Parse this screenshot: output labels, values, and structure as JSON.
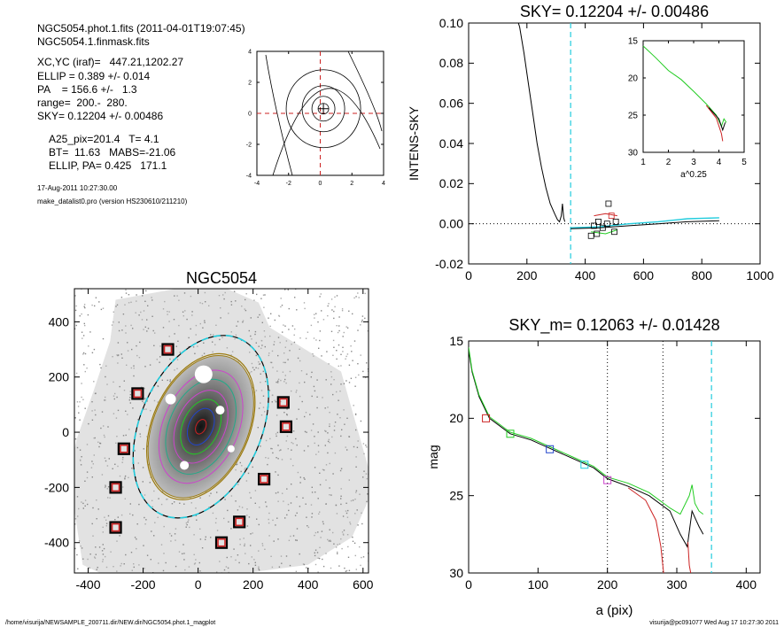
{
  "header": {
    "lines": [
      "NGC5054.phot.1.fits  (2011-04-01T19:07:45)",
      "NGC5054.1.finmask.fits",
      "XC,YC (iraf)=   447.21,1202.27",
      "ELLIP = 0.389 +/- 0.014",
      "PA    = 156.6 +/-   1.3",
      "range=  200.-  280.",
      "SKY= 0.12204 +/- 0.00486",
      "A25_pix=201.4   T= 4.1",
      "BT=  11.63   MABS=-21.06",
      "ELLIP, PA= 0.425   171.1",
      "17-Aug-2011 10:27:30.00",
      "make_datalist0.pro (version HS230610/211210)"
    ]
  },
  "footer": {
    "path": "/home/visurija/NEWSAMPLE_200711.dir/NEW.dir/NGC5054.phot.1_magplot",
    "stamp": "visurija@pc091077  Wed Aug 17 10:27:30 2011"
  },
  "colors": {
    "cyan": "#22ccdd",
    "red": "#cc2222",
    "green": "#22cc22",
    "blue": "#2244cc",
    "magenta": "#cc44cc",
    "gold": "#9a7a10",
    "black": "#000000"
  },
  "chart_data": [
    {
      "id": "center_contour",
      "type": "contour",
      "xlim": [
        -4,
        4
      ],
      "ylim": [
        -4,
        4
      ],
      "xticks": [
        "-4",
        "-2",
        "0",
        "2",
        "4"
      ],
      "yticks": [
        "-4",
        "-2",
        "0",
        "2",
        "4"
      ],
      "center": [
        0.2,
        0.3
      ]
    },
    {
      "id": "sky_profile",
      "type": "line",
      "title": "SKY= 0.12204 +/- 0.00486",
      "xlabel": "",
      "ylabel": "INTENS-SKY",
      "xlim": [
        0,
        1000
      ],
      "ylim": [
        -0.02,
        0.1
      ],
      "xticks": [
        "0",
        "200",
        "400",
        "600",
        "800",
        "1000"
      ],
      "yticks": [
        "-0.02",
        "0.00",
        "0.02",
        "0.04",
        "0.06",
        "0.08",
        "0.10"
      ],
      "vline_cyan": 350,
      "series": [
        {
          "color": "black",
          "points": [
            [
              160,
              0.105
            ],
            [
              175,
              0.098
            ],
            [
              190,
              0.085
            ],
            [
              205,
              0.07
            ],
            [
              220,
              0.055
            ],
            [
              235,
              0.04
            ],
            [
              250,
              0.028
            ],
            [
              265,
              0.018
            ],
            [
              280,
              0.01
            ],
            [
              295,
              0.005
            ],
            [
              305,
              0.002
            ],
            [
              312,
              0.001
            ],
            [
              318,
              0.004
            ],
            [
              322,
              0.01
            ],
            [
              326,
              0.003
            ],
            [
              330,
              0.001
            ]
          ]
        },
        {
          "color": "cyan",
          "points": [
            [
              350,
              -0.002
            ],
            [
              450,
              -0.0015
            ],
            [
              550,
              0.0
            ],
            [
              650,
              0.001
            ],
            [
              750,
              0.0025
            ],
            [
              860,
              0.003
            ]
          ]
        },
        {
          "color": "black",
          "points": [
            [
              350,
              -0.0025
            ],
            [
              450,
              -0.002
            ],
            [
              550,
              -0.001
            ],
            [
              650,
              0.0
            ],
            [
              750,
              0.001
            ],
            [
              860,
              0.0015
            ]
          ]
        },
        {
          "color": "green",
          "points": [
            [
              420,
              -0.004
            ],
            [
              470,
              -0.005
            ],
            [
              510,
              -0.003
            ]
          ]
        },
        {
          "color": "red",
          "points": [
            [
              430,
              0.004
            ],
            [
              470,
              0.005
            ],
            [
              510,
              0.004
            ]
          ]
        }
      ],
      "squares": [
        {
          "x": 420,
          "y": -0.006,
          "color": "black"
        },
        {
          "x": 440,
          "y": -0.005,
          "color": "black"
        },
        {
          "x": 445,
          "y": 0.001,
          "color": "black"
        },
        {
          "x": 460,
          "y": -0.002,
          "color": "black"
        },
        {
          "x": 475,
          "y": 0.0,
          "color": "black"
        },
        {
          "x": 480,
          "y": 0.01,
          "color": "black"
        },
        {
          "x": 490,
          "y": 0.004,
          "color": "red"
        },
        {
          "x": 500,
          "y": -0.004,
          "color": "black"
        },
        {
          "x": 505,
          "y": 0.001,
          "color": "black"
        },
        {
          "x": 430,
          "y": -0.001,
          "color": "black"
        }
      ]
    },
    {
      "id": "inset_profile",
      "type": "line",
      "xlabel": "a^0.25",
      "ylabel": "",
      "xlim": [
        1,
        5
      ],
      "ylim": [
        15,
        30
      ],
      "xticks": [
        "1",
        "2",
        "3",
        "4",
        "5"
      ],
      "yticks": [
        "15",
        "20",
        "25",
        "30"
      ],
      "series": [
        {
          "color": "green",
          "points": [
            [
              1.0,
              15.7
            ],
            [
              1.5,
              17.3
            ],
            [
              2.0,
              19.0
            ],
            [
              2.5,
              20.2
            ],
            [
              3.0,
              21.8
            ],
            [
              3.5,
              23.5
            ],
            [
              3.9,
              25.0
            ],
            [
              4.1,
              26.5
            ],
            [
              4.2,
              25.5
            ],
            [
              4.3,
              26.0
            ]
          ]
        },
        {
          "color": "red",
          "points": [
            [
              3.5,
              23.7
            ],
            [
              3.9,
              25.4
            ],
            [
              4.1,
              27.5
            ],
            [
              4.15,
              28.5
            ]
          ]
        },
        {
          "color": "black",
          "points": [
            [
              3.6,
              24.0
            ],
            [
              4.0,
              25.5
            ],
            [
              4.15,
              27.0
            ],
            [
              4.25,
              26.0
            ]
          ]
        }
      ]
    },
    {
      "id": "galaxy_image",
      "type": "scatter",
      "title": "NGC5054",
      "xlim": [
        -450,
        620
      ],
      "ylim": [
        -510,
        520
      ],
      "xticks": [
        "-400",
        "-200",
        "0",
        "200",
        "400",
        "600"
      ],
      "yticks": [
        "-400",
        "-200",
        "0",
        "200",
        "400"
      ],
      "ellipse": {
        "cx": 10,
        "cy": 20,
        "a": 350,
        "b": 220,
        "angle_deg": 66
      },
      "boxes": [
        {
          "x": -110,
          "y": 300
        },
        {
          "x": -220,
          "y": 140
        },
        {
          "x": -270,
          "y": -60
        },
        {
          "x": -300,
          "y": -200
        },
        {
          "x": -300,
          "y": -345
        },
        {
          "x": 310,
          "y": 108
        },
        {
          "x": 320,
          "y": 20
        },
        {
          "x": 240,
          "y": -170
        },
        {
          "x": 150,
          "y": -325
        },
        {
          "x": 85,
          "y": -400
        }
      ]
    },
    {
      "id": "mag_profile",
      "type": "line",
      "title": "SKY_m=  0.12063 +/- 0.01428",
      "xlabel": "a (pix)",
      "ylabel": "mag",
      "xlim": [
        0,
        420
      ],
      "ylim": [
        15,
        30
      ],
      "xticks": [
        "0",
        "100",
        "200",
        "300",
        "400"
      ],
      "yticks": [
        "15",
        "20",
        "25",
        "30"
      ],
      "vlines_dotted": [
        200,
        280
      ],
      "vline_cyan": 350,
      "series": [
        {
          "color": "black",
          "points": [
            [
              0,
              15.6
            ],
            [
              5,
              17.0
            ],
            [
              15,
              18.6
            ],
            [
              30,
              20.0
            ],
            [
              60,
              21.0
            ],
            [
              90,
              21.4
            ],
            [
              120,
              22.0
            ],
            [
              150,
              22.6
            ],
            [
              180,
              23.2
            ],
            [
              200,
              23.9
            ],
            [
              230,
              24.4
            ],
            [
              260,
              25.0
            ],
            [
              290,
              26.0
            ],
            [
              305,
              27.5
            ],
            [
              315,
              28.3
            ],
            [
              322,
              26.0
            ],
            [
              327,
              26.5
            ],
            [
              332,
              27.0
            ],
            [
              338,
              27.5
            ]
          ]
        },
        {
          "color": "green",
          "points": [
            [
              0,
              15.4
            ],
            [
              5,
              16.9
            ],
            [
              15,
              18.5
            ],
            [
              30,
              19.9
            ],
            [
              60,
              20.9
            ],
            [
              90,
              21.3
            ],
            [
              120,
              21.9
            ],
            [
              150,
              22.5
            ],
            [
              180,
              23.1
            ],
            [
              200,
              23.8
            ],
            [
              230,
              24.2
            ],
            [
              260,
              24.8
            ],
            [
              290,
              25.8
            ],
            [
              305,
              26.2
            ],
            [
              318,
              25.0
            ],
            [
              322,
              24.3
            ],
            [
              326,
              25.5
            ],
            [
              332,
              26.0
            ],
            [
              338,
              26.2
            ]
          ]
        },
        {
          "color": "red",
          "points": [
            [
              230,
              24.5
            ],
            [
              255,
              25.3
            ],
            [
              270,
              26.6
            ],
            [
              277,
              28.3
            ],
            [
              281,
              30.0
            ]
          ]
        },
        {
          "color": "red",
          "points": [
            [
              316,
              28.0
            ],
            [
              318,
              29.5
            ],
            [
              320,
              30.0
            ]
          ]
        }
      ],
      "squares": [
        {
          "x": 25,
          "y": 20.0,
          "color": "red"
        },
        {
          "x": 60,
          "y": 21.0,
          "color": "green"
        },
        {
          "x": 117,
          "y": 22.0,
          "color": "blue"
        },
        {
          "x": 167,
          "y": 23.0,
          "color": "cyan"
        },
        {
          "x": 200,
          "y": 24.0,
          "color": "magenta"
        }
      ]
    }
  ]
}
